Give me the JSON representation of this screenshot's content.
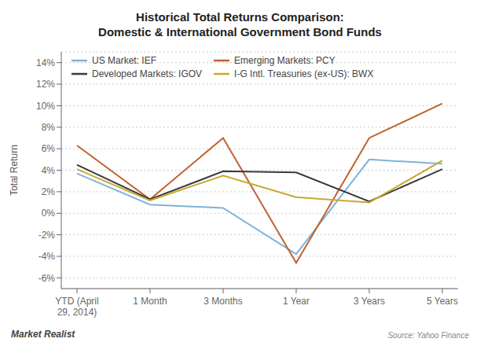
{
  "chart_data": {
    "type": "line",
    "title": "Historical Total Returns Comparison:\nDomestic & International Government Bond Funds",
    "y_label": "Total Return",
    "categories": [
      "YTD (April\n29, 2014)",
      "1 Month",
      "3 Months",
      "1 Year",
      "3 Years",
      "5 Years"
    ],
    "series": [
      {
        "name": "US Market: IEF",
        "color": "#7fb3d9",
        "values": [
          3.7,
          0.8,
          0.5,
          -3.8,
          5.0,
          4.6
        ]
      },
      {
        "name": "Emerging Markets: PCY",
        "color": "#c0622d",
        "values": [
          6.3,
          1.3,
          7.0,
          -4.6,
          7.0,
          10.2
        ]
      },
      {
        "name": "Developed Markets: IGOV",
        "color": "#3a3a3a",
        "values": [
          4.5,
          1.3,
          3.9,
          3.8,
          1.1,
          4.1
        ]
      },
      {
        "name": "I-G Intl. Treasuries (ex-US): BWX",
        "color": "#c8a832",
        "values": [
          4.1,
          1.2,
          3.5,
          1.5,
          1.0,
          4.9
        ]
      }
    ],
    "ylim": [
      -7,
      15
    ],
    "yticks": [
      {
        "value": -6,
        "label": "-6%"
      },
      {
        "value": -4,
        "label": "-4%"
      },
      {
        "value": -2,
        "label": "-2%"
      },
      {
        "value": 0,
        "label": "0%"
      },
      {
        "value": 2,
        "label": "2%"
      },
      {
        "value": 4,
        "label": "4%"
      },
      {
        "value": 6,
        "label": "6%"
      },
      {
        "value": 8,
        "label": "8%"
      },
      {
        "value": 10,
        "label": "10%"
      },
      {
        "value": 12,
        "label": "12%"
      },
      {
        "value": 14,
        "label": "14%"
      }
    ],
    "grid": true,
    "legend": "upper left",
    "annotations": [
      "Market Realist",
      "Source: Yahoo Finance"
    ]
  }
}
